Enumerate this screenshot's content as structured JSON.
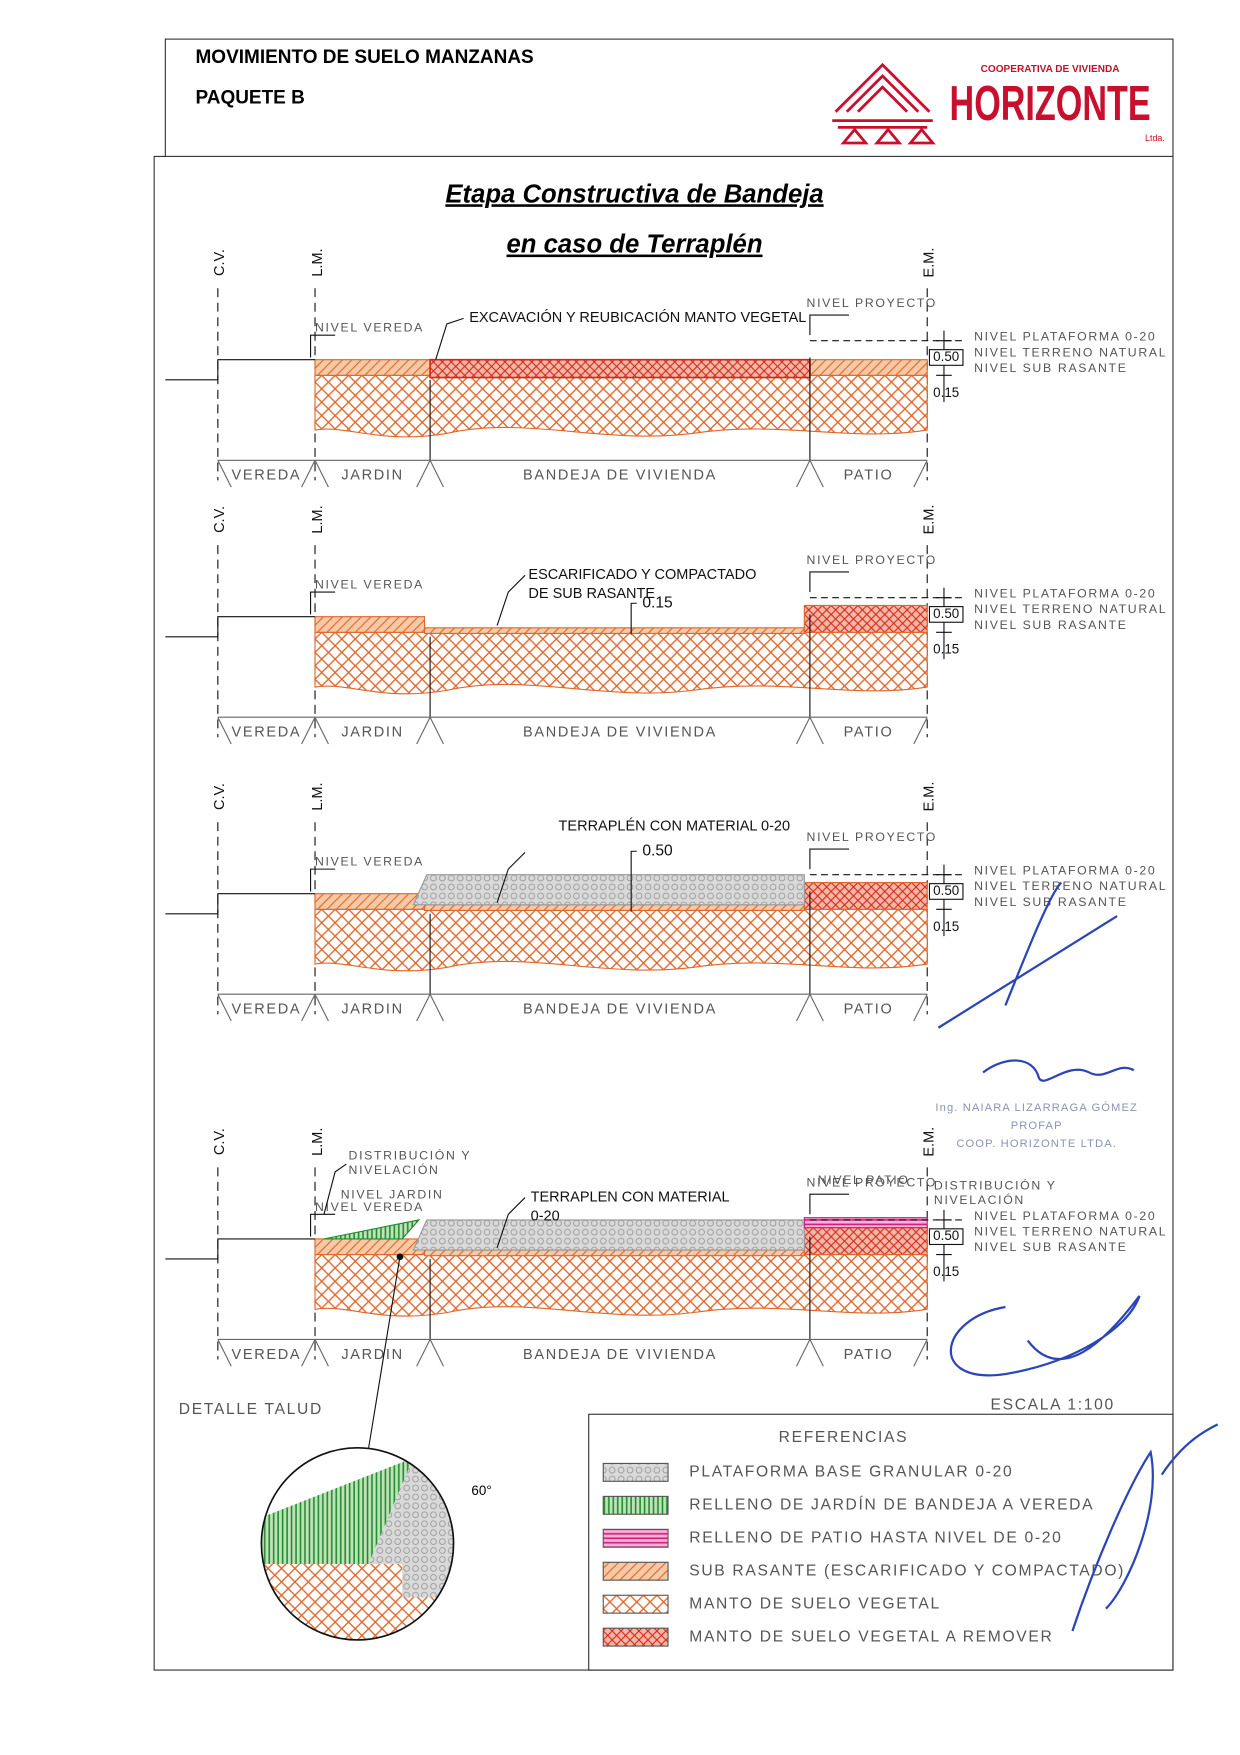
{
  "header": {
    "title": "MOVIMIENTO DE SUELO  MANZANAS",
    "subtitle": "PAQUETE B",
    "logo_top": "COOPERATIVA DE VIVIENDA",
    "logo_name": "HORIZONTE",
    "logo_suffix": "Ltda."
  },
  "drawing_title": [
    "Etapa Constructiva de Bandeja",
    "en caso de Terraplén"
  ],
  "panels": [
    {
      "cv": "C.V.",
      "lm": "L.M.",
      "em": "E.M.",
      "nivel_vereda": "NIVEL VEREDA",
      "nivel_proyecto": "NIVEL PROYECTO",
      "note": [
        "EXCAVACIÓN Y REUBICACIÓN MANTO VEGETAL"
      ],
      "levels": [
        "NIVEL PLATAFORMA 0-20",
        "NIVEL TERRENO NATURAL",
        "NIVEL SUB RASANTE"
      ],
      "dims": [
        "0.50",
        "0.15"
      ],
      "zones": [
        "VEREDA",
        "JARDIN",
        "BANDEJA DE VIVIENDA",
        "PATIO"
      ]
    },
    {
      "cv": "C.V.",
      "lm": "L.M.",
      "em": "E.M.",
      "nivel_vereda": "NIVEL VEREDA",
      "nivel_proyecto": "NIVEL PROYECTO",
      "note": [
        "ESCARIFICADO Y COMPACTADO",
        "DE SUB RASANTE"
      ],
      "inner_dim": "0.15",
      "levels": [
        "NIVEL PLATAFORMA 0-20",
        "NIVEL TERRENO NATURAL",
        "NIVEL SUB RASANTE"
      ],
      "dims": [
        "0.50",
        "0.15"
      ],
      "zones": [
        "VEREDA",
        "JARDIN",
        "BANDEJA DE VIVIENDA",
        "PATIO"
      ]
    },
    {
      "cv": "C.V.",
      "lm": "L.M.",
      "em": "E.M.",
      "nivel_vereda": "NIVEL VEREDA",
      "nivel_proyecto": "NIVEL PROYECTO",
      "note": [
        "TERRAPLÉN CON MATERIAL 0-20"
      ],
      "inner_dim": "0.50",
      "levels": [
        "NIVEL PLATAFORMA 0-20",
        "NIVEL TERRENO NATURAL",
        "NIVEL SUB RASANTE"
      ],
      "dims": [
        "0.50",
        "0.15"
      ],
      "zones": [
        "VEREDA",
        "JARDIN",
        "BANDEJA DE VIVIENDA",
        "PATIO"
      ]
    },
    {
      "cv": "C.V.",
      "lm": "L.M.",
      "em": "E.M.",
      "nivel_vereda": "NIVEL VEREDA",
      "nivel_proyecto": "NIVEL PROYECTO",
      "note": [
        "TERRAPLEN CON MATERIAL",
        "0-20"
      ],
      "nivel_jardin": "NIVEL JARDIN",
      "nivel_patio": "NIVEL PATIO",
      "distribucion_left": [
        "DISTRIBUCIÓN Y",
        "NIVELACIÓN"
      ],
      "distribucion_right": [
        "DISTRIBUCIÓN Y",
        "NIVELACIÓN"
      ],
      "levels": [
        "NIVEL PLATAFORMA 0-20",
        "NIVEL TERRENO NATURAL",
        "NIVEL SUB RASANTE"
      ],
      "dims": [
        "0.50",
        "0.15"
      ],
      "zones": [
        "VEREDA",
        "JARDIN",
        "BANDEJA DE VIVIENDA",
        "PATIO"
      ]
    }
  ],
  "detail_label": "DETALLE TALUD",
  "detail_angle": "60°",
  "scale": "ESCALA 1:100",
  "legend": {
    "title": "REFERENCIAS",
    "items": [
      "PLATAFORMA BASE GRANULAR 0-20",
      "RELLENO DE JARDÍN DE BANDEJA A VEREDA",
      "RELLENO DE PATIO HASTA NIVEL DE 0-20",
      "SUB RASANTE (ESCARIFICADO Y COMPACTADO)",
      "MANTO DE SUELO VEGETAL",
      "MANTO DE SUELO VEGETAL A REMOVER"
    ]
  },
  "stamp": [
    "Ing. NAIARA LIZARRAGA GÓMEZ",
    "PROFAP",
    "COOP. HORIZONTE LTDA."
  ]
}
